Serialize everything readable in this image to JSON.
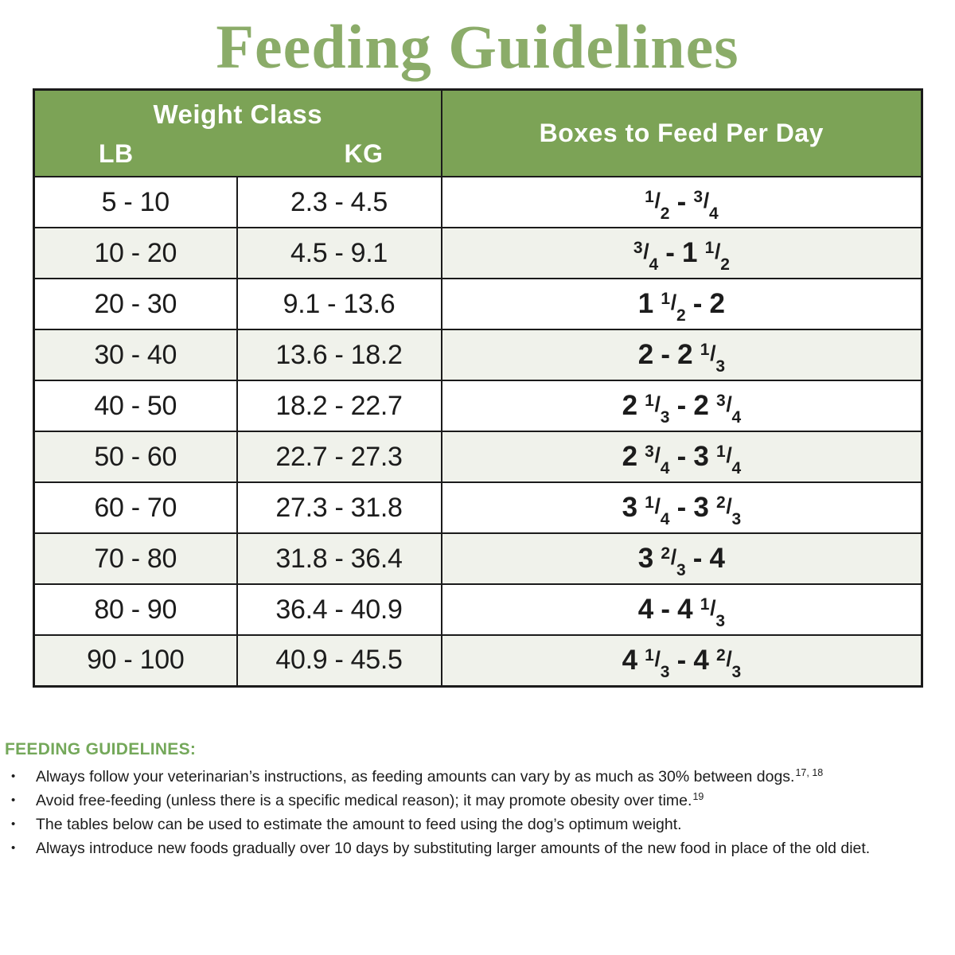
{
  "title": "Feeding Guidelines",
  "table": {
    "header": {
      "weight_class": "Weight Class",
      "lb": "LB",
      "kg": "KG",
      "boxes": "Boxes to Feed Per Day"
    },
    "rows": [
      {
        "lb": "5 - 10",
        "kg": "2.3 - 4.5",
        "boxes": "1/2 - 3/4"
      },
      {
        "lb": "10 - 20",
        "kg": "4.5 - 9.1",
        "boxes": "3/4 - 1 1/2"
      },
      {
        "lb": "20 - 30",
        "kg": "9.1 - 13.6",
        "boxes": "1 1/2 - 2"
      },
      {
        "lb": "30 - 40",
        "kg": "13.6 - 18.2",
        "boxes": "2 - 2 1/3"
      },
      {
        "lb": "40 - 50",
        "kg": "18.2 - 22.7",
        "boxes": "2 1/3 - 2 3/4"
      },
      {
        "lb": "50 - 60",
        "kg": "22.7 - 27.3",
        "boxes": "2 3/4 - 3 1/4"
      },
      {
        "lb": "60 - 70",
        "kg": "27.3 - 31.8",
        "boxes": "3 1/4 - 3 2/3"
      },
      {
        "lb": "70 - 80",
        "kg": "31.8 - 36.4",
        "boxes": "3 2/3 - 4"
      },
      {
        "lb": "80 - 90",
        "kg": "36.4 - 40.9",
        "boxes": "4 - 4 1/3"
      },
      {
        "lb": "90 - 100",
        "kg": "40.9 - 45.5",
        "boxes": "4 1/3 - 4 2/3"
      }
    ]
  },
  "notes": {
    "heading": "FEEDING GUIDELINES:",
    "bullet_char": "•",
    "bullets": [
      {
        "text": "Always follow your veterinarian’s instructions, as feeding amounts can vary by as much as 30% between dogs.",
        "ref": "17, 18"
      },
      {
        "text": "Avoid free-feeding (unless there is a specific medical reason); it may promote obesity over time.",
        "ref": "19"
      },
      {
        "text": "The tables below can be used to estimate the amount to feed using the dog’s optimum weight.",
        "ref": ""
      },
      {
        "text": "Always introduce new foods gradually over 10 days by substituting larger amounts of the new food in place of the old diet.",
        "ref": ""
      }
    ]
  },
  "colors": {
    "title_green": "#8bac69",
    "header_green": "#7ca356",
    "notes_heading_green": "#74a85a",
    "row_alt": "#f0f2eb",
    "border": "#1b1b1b",
    "text": "#1c1c1c"
  }
}
